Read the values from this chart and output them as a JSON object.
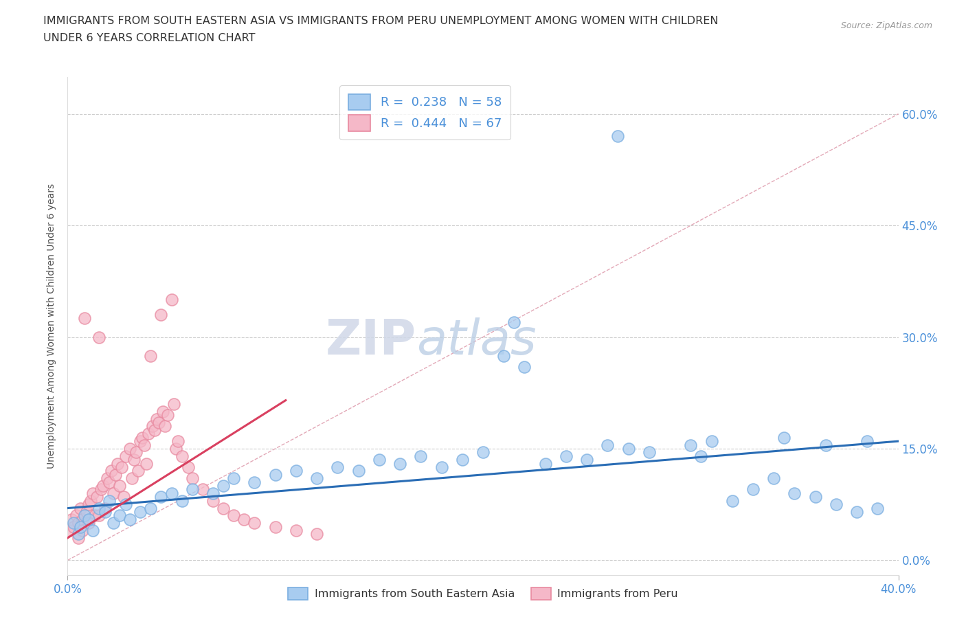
{
  "title_line1": "IMMIGRANTS FROM SOUTH EASTERN ASIA VS IMMIGRANTS FROM PERU UNEMPLOYMENT AMONG WOMEN WITH CHILDREN",
  "title_line2": "UNDER 6 YEARS CORRELATION CHART",
  "source": "Source: ZipAtlas.com",
  "ylabel": "Unemployment Among Women with Children Under 6 years",
  "ytick_values": [
    0.0,
    15.0,
    30.0,
    45.0,
    60.0
  ],
  "xlim": [
    0.0,
    40.0
  ],
  "ylim": [
    -2.0,
    65.0
  ],
  "legend1_label": "R =  0.238   N = 58",
  "legend2_label": "R =  0.444   N = 67",
  "legend_bottom_label1": "Immigrants from South Eastern Asia",
  "legend_bottom_label2": "Immigrants from Peru",
  "watermark_zip": "ZIP",
  "watermark_atlas": "atlas",
  "blue_fill": "#A8CCF0",
  "blue_edge": "#7AAEE0",
  "pink_fill": "#F5B8C8",
  "pink_edge": "#E88AA0",
  "blue_line_color": "#2A6DB5",
  "pink_line_color": "#D94060",
  "diag_line_color": "#E0A0B0",
  "grid_color": "#CCCCCC",
  "tick_label_color": "#4A90D9",
  "blue_x": [
    0.3,
    0.5,
    0.6,
    0.8,
    1.0,
    1.2,
    1.5,
    1.8,
    2.0,
    2.2,
    2.5,
    2.8,
    3.0,
    3.5,
    4.0,
    4.5,
    5.0,
    5.5,
    6.0,
    7.0,
    7.5,
    8.0,
    9.0,
    10.0,
    11.0,
    12.0,
    13.0,
    14.0,
    15.0,
    16.0,
    17.0,
    18.0,
    19.0,
    20.0,
    21.5,
    22.0,
    23.0,
    24.0,
    25.0,
    26.5,
    27.0,
    28.0,
    30.0,
    30.5,
    31.0,
    32.0,
    33.0,
    34.0,
    35.0,
    36.0,
    37.0,
    38.0,
    39.0,
    21.0,
    26.0,
    34.5,
    36.5,
    38.5
  ],
  "blue_y": [
    5.0,
    3.5,
    4.5,
    6.0,
    5.5,
    4.0,
    7.0,
    6.5,
    8.0,
    5.0,
    6.0,
    7.5,
    5.5,
    6.5,
    7.0,
    8.5,
    9.0,
    8.0,
    9.5,
    9.0,
    10.0,
    11.0,
    10.5,
    11.5,
    12.0,
    11.0,
    12.5,
    12.0,
    13.5,
    13.0,
    14.0,
    12.5,
    13.5,
    14.5,
    32.0,
    26.0,
    13.0,
    14.0,
    13.5,
    57.0,
    15.0,
    14.5,
    15.5,
    14.0,
    16.0,
    8.0,
    9.5,
    11.0,
    9.0,
    8.5,
    7.5,
    6.5,
    7.0,
    27.5,
    15.5,
    16.5,
    15.5,
    16.0
  ],
  "pink_x": [
    0.1,
    0.2,
    0.3,
    0.4,
    0.5,
    0.6,
    0.7,
    0.8,
    0.9,
    1.0,
    1.1,
    1.2,
    1.3,
    1.4,
    1.5,
    1.6,
    1.7,
    1.8,
    1.9,
    2.0,
    2.1,
    2.2,
    2.3,
    2.4,
    2.5,
    2.6,
    2.7,
    2.8,
    3.0,
    3.1,
    3.2,
    3.3,
    3.4,
    3.5,
    3.6,
    3.7,
    3.8,
    3.9,
    4.0,
    4.1,
    4.2,
    4.3,
    4.4,
    4.5,
    4.6,
    4.7,
    4.8,
    5.0,
    5.1,
    5.2,
    5.3,
    5.5,
    5.8,
    6.0,
    6.5,
    7.0,
    7.5,
    8.0,
    8.5,
    9.0,
    10.0,
    11.0,
    12.0,
    0.5,
    0.7,
    1.0,
    1.5
  ],
  "pink_y": [
    4.0,
    5.5,
    4.5,
    6.0,
    5.0,
    7.0,
    5.5,
    32.5,
    6.5,
    7.5,
    8.0,
    9.0,
    6.0,
    8.5,
    30.0,
    9.5,
    10.0,
    7.0,
    11.0,
    10.5,
    12.0,
    9.0,
    11.5,
    13.0,
    10.0,
    12.5,
    8.5,
    14.0,
    15.0,
    11.0,
    13.5,
    14.5,
    12.0,
    16.0,
    16.5,
    15.5,
    13.0,
    17.0,
    27.5,
    18.0,
    17.5,
    19.0,
    18.5,
    33.0,
    20.0,
    18.0,
    19.5,
    35.0,
    21.0,
    15.0,
    16.0,
    14.0,
    12.5,
    11.0,
    9.5,
    8.0,
    7.0,
    6.0,
    5.5,
    5.0,
    4.5,
    4.0,
    3.5,
    3.0,
    4.0,
    5.0,
    6.0
  ],
  "blue_trend_x": [
    0.0,
    40.0
  ],
  "blue_trend_y": [
    7.0,
    16.0
  ],
  "pink_trend_x": [
    0.0,
    10.5
  ],
  "pink_trend_y": [
    3.0,
    21.5
  ],
  "diag_line_x": [
    0.0,
    40.0
  ],
  "diag_line_y": [
    0.0,
    60.0
  ]
}
